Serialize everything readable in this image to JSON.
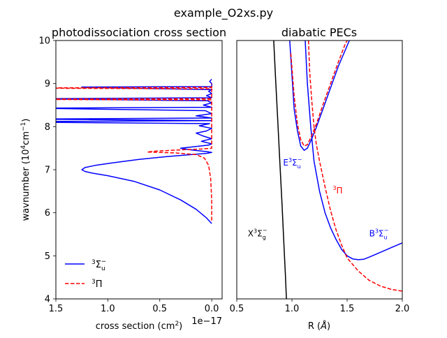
{
  "figure": {
    "suptitle": "example_O2xs.py"
  },
  "chart_data": [
    {
      "type": "line",
      "title": "photodissociation cross section",
      "xlabel": "cross section (cm$^2$)",
      "xlabel_parts": [
        "cross section (cm",
        "2",
        ")"
      ],
      "x_offset_text": "1e−17",
      "ylabel": "wavnumber (10$^4$cm$^{-1}$)",
      "ylabel_parts": [
        "wavnumber (10",
        "4",
        "cm",
        "−1",
        ")"
      ],
      "xlim": [
        1.5,
        -0.1
      ],
      "ylim": [
        4,
        10
      ],
      "xticks": [
        1.5,
        1.0,
        0.5,
        0.0
      ],
      "xtick_labels": [
        "1.5",
        "1.0",
        "0.5",
        "0.0"
      ],
      "yticks": [
        4,
        5,
        6,
        7,
        8,
        9,
        10
      ],
      "ytick_labels": [
        "4",
        "5",
        "6",
        "7",
        "8",
        "9",
        "10"
      ],
      "legend_position": "lower-left",
      "legend": [
        {
          "label_parts": [
            "3",
            "Σ",
            "u",
            "−"
          ],
          "color": "#0000ff",
          "dash": "solid"
        },
        {
          "label_parts": [
            "3",
            "Π"
          ],
          "color": "#ff0000",
          "dash": "dashed"
        }
      ],
      "series": [
        {
          "name": "3Sigma_u-",
          "color": "#0000ff",
          "dash": "solid",
          "points": [
            [
              0.0,
              5.75
            ],
            [
              0.05,
              5.88
            ],
            [
              0.15,
              6.08
            ],
            [
              0.3,
              6.3
            ],
            [
              0.5,
              6.53
            ],
            [
              0.75,
              6.73
            ],
            [
              1.0,
              6.86
            ],
            [
              1.15,
              6.92
            ],
            [
              1.22,
              6.96
            ],
            [
              1.25,
              7.0
            ],
            [
              1.22,
              7.05
            ],
            [
              1.12,
              7.1
            ],
            [
              0.95,
              7.16
            ],
            [
              0.7,
              7.24
            ],
            [
              0.45,
              7.3
            ],
            [
              0.2,
              7.35
            ],
            [
              0.05,
              7.38
            ],
            [
              0.0,
              7.4
            ],
            [
              0.05,
              7.42
            ],
            [
              0.2,
              7.46
            ],
            [
              0.3,
              7.5
            ],
            [
              0.15,
              7.54
            ],
            [
              0.03,
              7.57
            ],
            [
              0.0,
              7.6
            ],
            [
              0.1,
              7.66
            ],
            [
              0.0,
              7.72
            ],
            [
              0.08,
              7.78
            ],
            [
              0.15,
              7.85
            ],
            [
              0.05,
              7.9
            ],
            [
              0.0,
              7.96
            ],
            [
              0.12,
              8.02
            ],
            [
              0.02,
              8.07
            ],
            [
              1.5,
              8.1
            ],
            [
              1.5,
              8.12
            ],
            [
              0.0,
              8.14
            ],
            [
              1.5,
              8.17
            ],
            [
              1.5,
              8.18
            ],
            [
              0.0,
              8.2
            ],
            [
              0.15,
              8.25
            ],
            [
              0.0,
              8.3
            ],
            [
              0.06,
              8.37
            ],
            [
              1.5,
              8.42
            ],
            [
              1.5,
              8.43
            ],
            [
              0.0,
              8.45
            ],
            [
              0.08,
              8.5
            ],
            [
              0.0,
              8.55
            ],
            [
              0.04,
              8.6
            ],
            [
              1.5,
              8.64
            ],
            [
              1.5,
              8.65
            ],
            [
              0.0,
              8.67
            ],
            [
              0.05,
              8.72
            ],
            [
              0.0,
              8.77
            ],
            [
              0.03,
              8.82
            ],
            [
              0.0,
              8.86
            ],
            [
              1.25,
              8.91
            ],
            [
              1.25,
              8.92
            ],
            [
              0.0,
              8.93
            ],
            [
              0.0,
              9.0
            ],
            [
              0.02,
              9.05
            ],
            [
              0.0,
              9.1
            ]
          ]
        },
        {
          "name": "3Pi",
          "color": "#ff0000",
          "dash": "dashed",
          "points": [
            [
              0.0,
              5.82
            ],
            [
              0.0,
              6.3
            ],
            [
              0.01,
              6.8
            ],
            [
              0.03,
              7.1
            ],
            [
              0.07,
              7.27
            ],
            [
              0.15,
              7.35
            ],
            [
              0.35,
              7.39
            ],
            [
              0.62,
              7.41
            ],
            [
              0.55,
              7.43
            ],
            [
              0.3,
              7.46
            ],
            [
              0.1,
              7.48
            ],
            [
              0.0,
              7.5
            ],
            [
              0.0,
              8.62
            ],
            [
              1.5,
              8.63
            ],
            [
              1.5,
              8.64
            ],
            [
              0.0,
              8.65
            ],
            [
              0.0,
              8.88
            ],
            [
              1.5,
              8.89
            ],
            [
              1.5,
              8.9
            ],
            [
              0.0,
              8.91
            ],
            [
              0.0,
              9.0
            ]
          ]
        }
      ]
    },
    {
      "type": "line",
      "title": "diabatic PECs",
      "xlabel": "R ($\\AA$)",
      "xlabel_parts": [
        "R (",
        "Å",
        ")"
      ],
      "xlim": [
        0.5,
        2.0
      ],
      "ylim": [
        4,
        10
      ],
      "xticks": [
        0.5,
        1.0,
        1.5,
        2.0
      ],
      "xtick_labels": [
        "0.5",
        "1.0",
        "1.5",
        "2.0"
      ],
      "annotations": [
        {
          "parts": [
            "X",
            "3",
            "Σ",
            "g",
            "−"
          ],
          "x": 0.6,
          "y": 5.45,
          "color": "#000000"
        },
        {
          "parts": [
            "E",
            "3",
            "Σ",
            "u",
            "−"
          ],
          "x": 0.92,
          "y": 7.1,
          "color": "#0000ff"
        },
        {
          "parts": [
            "3",
            "Π"
          ],
          "x": 1.37,
          "y": 6.45,
          "color": "#ff0000"
        },
        {
          "parts": [
            "B",
            "3",
            "Σ",
            "u",
            "−"
          ],
          "x": 1.7,
          "y": 5.45,
          "color": "#0000ff"
        }
      ],
      "series": [
        {
          "name": "X3Sigma_g-",
          "color": "#000000",
          "dash": "solid",
          "points": [
            [
              0.835,
              10.0
            ],
            [
              0.85,
              9.2
            ],
            [
              0.87,
              8.2
            ],
            [
              0.89,
              7.2
            ],
            [
              0.91,
              6.2
            ],
            [
              0.925,
              5.4
            ],
            [
              0.94,
              4.6
            ],
            [
              0.95,
              4.0
            ]
          ]
        },
        {
          "name": "E3Sigma_u-",
          "color": "#0000ff",
          "dash": "solid",
          "points": [
            [
              0.98,
              10.0
            ],
            [
              1.0,
              9.2
            ],
            [
              1.02,
              8.4
            ],
            [
              1.05,
              7.9
            ],
            [
              1.08,
              7.55
            ],
            [
              1.11,
              7.45
            ],
            [
              1.14,
              7.5
            ],
            [
              1.18,
              7.72
            ],
            [
              1.22,
              7.98
            ],
            [
              1.28,
              8.4
            ],
            [
              1.35,
              8.9
            ],
            [
              1.42,
              9.4
            ],
            [
              1.52,
              10.0
            ]
          ]
        },
        {
          "name": "B3Sigma_u-",
          "color": "#0000ff",
          "dash": "solid",
          "points": [
            [
              1.12,
              10.0
            ],
            [
              1.14,
              9.0
            ],
            [
              1.17,
              8.0
            ],
            [
              1.2,
              7.2
            ],
            [
              1.25,
              6.5
            ],
            [
              1.3,
              6.0
            ],
            [
              1.35,
              5.65
            ],
            [
              1.4,
              5.38
            ],
            [
              1.45,
              5.15
            ],
            [
              1.5,
              5.0
            ],
            [
              1.55,
              4.93
            ],
            [
              1.6,
              4.91
            ],
            [
              1.65,
              4.92
            ],
            [
              1.7,
              4.97
            ],
            [
              1.8,
              5.08
            ],
            [
              1.9,
              5.19
            ],
            [
              2.0,
              5.3
            ]
          ]
        },
        {
          "name": "3Pi",
          "color": "#ff0000",
          "dash": "dashed",
          "points": [
            [
              1.15,
              10.0
            ],
            [
              1.16,
              9.3
            ],
            [
              1.18,
              8.6
            ],
            [
              1.2,
              8.0
            ],
            [
              1.22,
              7.6
            ],
            [
              1.25,
              7.2
            ],
            [
              1.3,
              6.6
            ],
            [
              1.35,
              6.05
            ],
            [
              1.4,
              5.6
            ],
            [
              1.45,
              5.25
            ],
            [
              1.5,
              4.95
            ],
            [
              1.6,
              4.65
            ],
            [
              1.7,
              4.43
            ],
            [
              1.8,
              4.3
            ],
            [
              1.9,
              4.22
            ],
            [
              2.0,
              4.18
            ]
          ]
        },
        {
          "name": "3Pi-upper",
          "color": "#ff0000",
          "dash": "dashed",
          "points": [
            [
              0.99,
              9.7
            ],
            [
              1.02,
              8.7
            ],
            [
              1.05,
              8.05
            ],
            [
              1.08,
              7.7
            ],
            [
              1.11,
              7.55
            ],
            [
              1.14,
              7.58
            ],
            [
              1.18,
              7.8
            ],
            [
              1.22,
              8.05
            ],
            [
              1.28,
              8.5
            ],
            [
              1.35,
              9.0
            ],
            [
              1.42,
              9.5
            ],
            [
              1.48,
              9.9
            ],
            [
              1.5,
              10.0
            ]
          ]
        }
      ]
    }
  ]
}
